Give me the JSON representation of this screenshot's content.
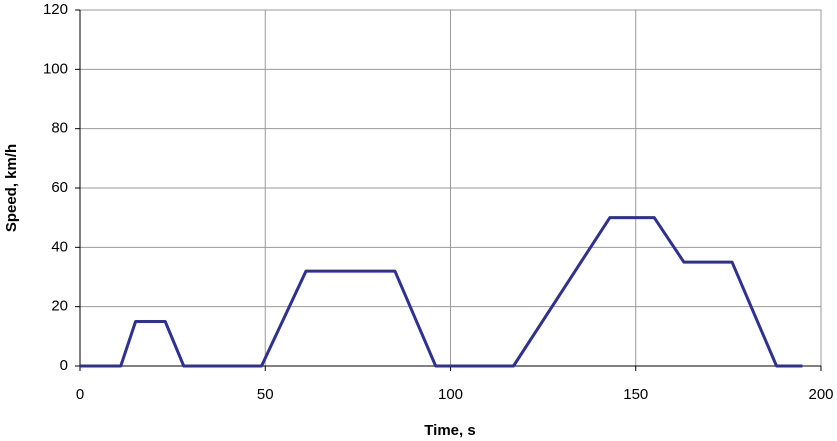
{
  "chart_data": {
    "type": "line",
    "x_label": "Time, s",
    "y_label": "Speed, km/h",
    "x": [
      0,
      11,
      15,
      23,
      28,
      49,
      61,
      85,
      96,
      117,
      143,
      155,
      163,
      176,
      188,
      195
    ],
    "values": [
      0,
      0,
      15,
      15,
      0,
      0,
      32,
      32,
      0,
      0,
      50,
      50,
      35,
      35,
      0,
      0
    ],
    "color": "#2e3192",
    "xlim": [
      0,
      200
    ],
    "xticks": [
      0,
      50,
      100,
      150,
      200
    ],
    "ylim": [
      0,
      120
    ],
    "yticks": [
      0,
      20,
      40,
      60,
      80,
      100,
      120
    ],
    "grid": true
  }
}
